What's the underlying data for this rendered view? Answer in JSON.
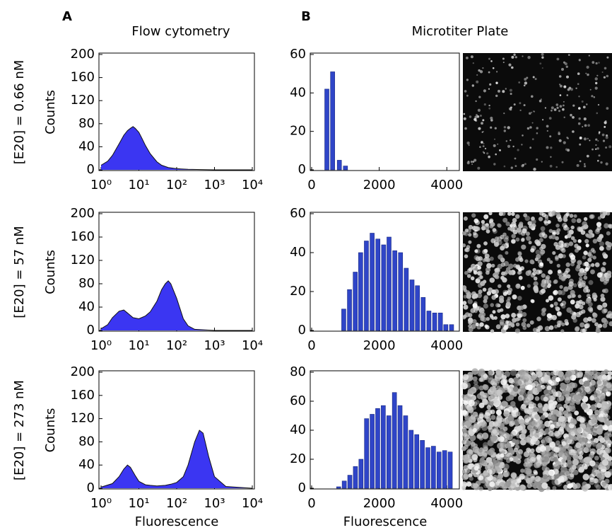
{
  "labels": {
    "panel_a": "A",
    "panel_b": "B",
    "title_a": "Flow cytometry",
    "title_b": "Microtiter Plate"
  },
  "rows": [
    "[E20] = 0.66 nM",
    "[E20] = 57 nM",
    "[E20] = 273 nM"
  ],
  "chart_data": [
    {
      "type": "area",
      "ylabel": "Counts",
      "color": "#3b36f2",
      "xlog": true,
      "x": [
        1,
        1.5,
        2,
        3,
        4,
        5,
        6,
        7,
        8,
        10,
        12,
        15,
        20,
        30,
        40,
        60,
        100,
        200,
        1000,
        10000
      ],
      "values": [
        8,
        15,
        25,
        45,
        60,
        68,
        72,
        75,
        72,
        65,
        55,
        42,
        28,
        14,
        8,
        4,
        2,
        1,
        0,
        0
      ],
      "xlim": [
        1,
        10000
      ],
      "xticks": [
        {
          "value": 1,
          "label": "10⁰"
        },
        {
          "value": 10,
          "label": "10¹"
        },
        {
          "value": 100,
          "label": "10²"
        },
        {
          "value": 1000,
          "label": "10³"
        },
        {
          "value": 10000,
          "label": "10⁴"
        }
      ],
      "ylim": [
        0,
        200
      ],
      "yticks": [
        0,
        40,
        80,
        120,
        160,
        200
      ]
    },
    {
      "type": "area",
      "ylabel": "Counts",
      "color": "#3b36f2",
      "xlog": true,
      "x": [
        1,
        1.5,
        2,
        3,
        4,
        5,
        7,
        10,
        15,
        20,
        30,
        40,
        50,
        60,
        70,
        100,
        150,
        200,
        300,
        1000,
        10000
      ],
      "values": [
        3,
        10,
        22,
        33,
        35,
        30,
        22,
        20,
        25,
        32,
        50,
        70,
        80,
        85,
        80,
        55,
        20,
        8,
        2,
        0,
        0
      ],
      "xlim": [
        1,
        10000
      ],
      "xticks": [
        {
          "value": 1,
          "label": "10⁰"
        },
        {
          "value": 10,
          "label": "10¹"
        },
        {
          "value": 100,
          "label": "10²"
        },
        {
          "value": 1000,
          "label": "10³"
        },
        {
          "value": 10000,
          "label": "10⁴"
        }
      ],
      "ylim": [
        0,
        200
      ],
      "yticks": [
        0,
        40,
        80,
        120,
        160,
        200
      ]
    },
    {
      "type": "area",
      "ylabel": "Counts",
      "xlabel": "Fluorescence",
      "color": "#3b36f2",
      "xlog": true,
      "x": [
        1,
        2,
        3,
        4,
        5,
        6,
        8,
        10,
        15,
        20,
        30,
        50,
        70,
        100,
        150,
        200,
        300,
        400,
        500,
        700,
        1000,
        2000,
        10000
      ],
      "values": [
        2,
        8,
        20,
        33,
        40,
        36,
        22,
        12,
        6,
        5,
        4,
        5,
        7,
        10,
        20,
        40,
        80,
        100,
        95,
        55,
        20,
        3,
        0
      ],
      "xlim": [
        1,
        10000
      ],
      "xticks": [
        {
          "value": 1,
          "label": "10⁰"
        },
        {
          "value": 10,
          "label": "10¹"
        },
        {
          "value": 100,
          "label": "10²"
        },
        {
          "value": 1000,
          "label": "10³"
        },
        {
          "value": 10000,
          "label": "10⁴"
        }
      ],
      "ylim": [
        0,
        200
      ],
      "yticks": [
        0,
        40,
        80,
        120,
        160,
        200
      ]
    },
    {
      "type": "bar",
      "color": "#2f45c8",
      "x": [
        450,
        620,
        820,
        1000
      ],
      "values": [
        42,
        51,
        5,
        2
      ],
      "xlim": [
        0,
        4350
      ],
      "xticks": [
        0,
        2000,
        4000
      ],
      "ylim": [
        0,
        60
      ],
      "yticks": [
        0,
        20,
        40,
        60
      ]
    },
    {
      "type": "bar",
      "color": "#2f45c8",
      "x": [
        950,
        1120,
        1290,
        1450,
        1620,
        1790,
        1960,
        2130,
        2290,
        2460,
        2630,
        2800,
        2970,
        3130,
        3300,
        3470,
        3640,
        3810,
        3970,
        4140
      ],
      "values": [
        11,
        21,
        30,
        40,
        46,
        50,
        47,
        44,
        48,
        41,
        40,
        32,
        26,
        23,
        17,
        10,
        9,
        9,
        3,
        3
      ],
      "xlim": [
        0,
        4350
      ],
      "xticks": [
        0,
        2000,
        4000
      ],
      "ylim": [
        0,
        60
      ],
      "yticks": [
        0,
        20,
        40,
        60
      ]
    },
    {
      "type": "bar",
      "xlabel": "Fluorescence",
      "color": "#2f45c8",
      "x": [
        800,
        965,
        1130,
        1295,
        1460,
        1625,
        1790,
        1955,
        2120,
        2285,
        2450,
        2615,
        2780,
        2945,
        3110,
        3275,
        3440,
        3605,
        3770,
        3935,
        4100
      ],
      "values": [
        1,
        5,
        9,
        15,
        20,
        48,
        51,
        55,
        57,
        50,
        66,
        57,
        50,
        40,
        37,
        33,
        28,
        29,
        25,
        26,
        25
      ],
      "xlim": [
        0,
        4350
      ],
      "xticks": [
        0,
        2000,
        4000
      ],
      "ylim": [
        0,
        80
      ],
      "yticks": [
        0,
        20,
        40,
        60,
        80
      ]
    }
  ]
}
